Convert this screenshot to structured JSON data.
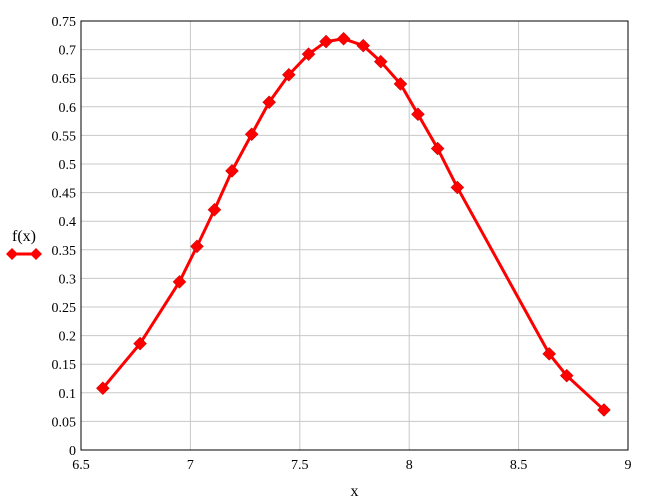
{
  "chart_data": {
    "type": "line",
    "xlabel": "x",
    "ylabel": "f(x)",
    "xlim": [
      6.5,
      9
    ],
    "ylim": [
      0,
      0.75
    ],
    "x_ticks": [
      "6.5",
      "7",
      "7.5",
      "8",
      "8.5",
      "9"
    ],
    "y_ticks": [
      "0",
      "0.05",
      "0.1",
      "0.15",
      "0.2",
      "0.25",
      "0.3",
      "0.35",
      "0.4",
      "0.45",
      "0.5",
      "0.55",
      "0.6",
      "0.65",
      "0.7",
      "0.75"
    ],
    "grid": true,
    "legend": "left of plot, beside y-axis label",
    "series": [
      {
        "color": "#ff0000",
        "marker": "diamond",
        "points": [
          [
            6.6,
            0.108
          ],
          [
            6.77,
            0.186
          ],
          [
            6.95,
            0.294
          ],
          [
            7.03,
            0.356
          ],
          [
            7.11,
            0.42
          ],
          [
            7.19,
            0.488
          ],
          [
            7.28,
            0.552
          ],
          [
            7.36,
            0.608
          ],
          [
            7.45,
            0.656
          ],
          [
            7.54,
            0.692
          ],
          [
            7.62,
            0.714
          ],
          [
            7.7,
            0.719
          ],
          [
            7.79,
            0.707
          ],
          [
            7.87,
            0.679
          ],
          [
            7.96,
            0.64
          ],
          [
            8.04,
            0.587
          ],
          [
            8.13,
            0.527
          ],
          [
            8.22,
            0.459
          ],
          [
            8.64,
            0.168
          ],
          [
            8.72,
            0.13
          ],
          [
            8.89,
            0.07
          ]
        ]
      }
    ]
  }
}
